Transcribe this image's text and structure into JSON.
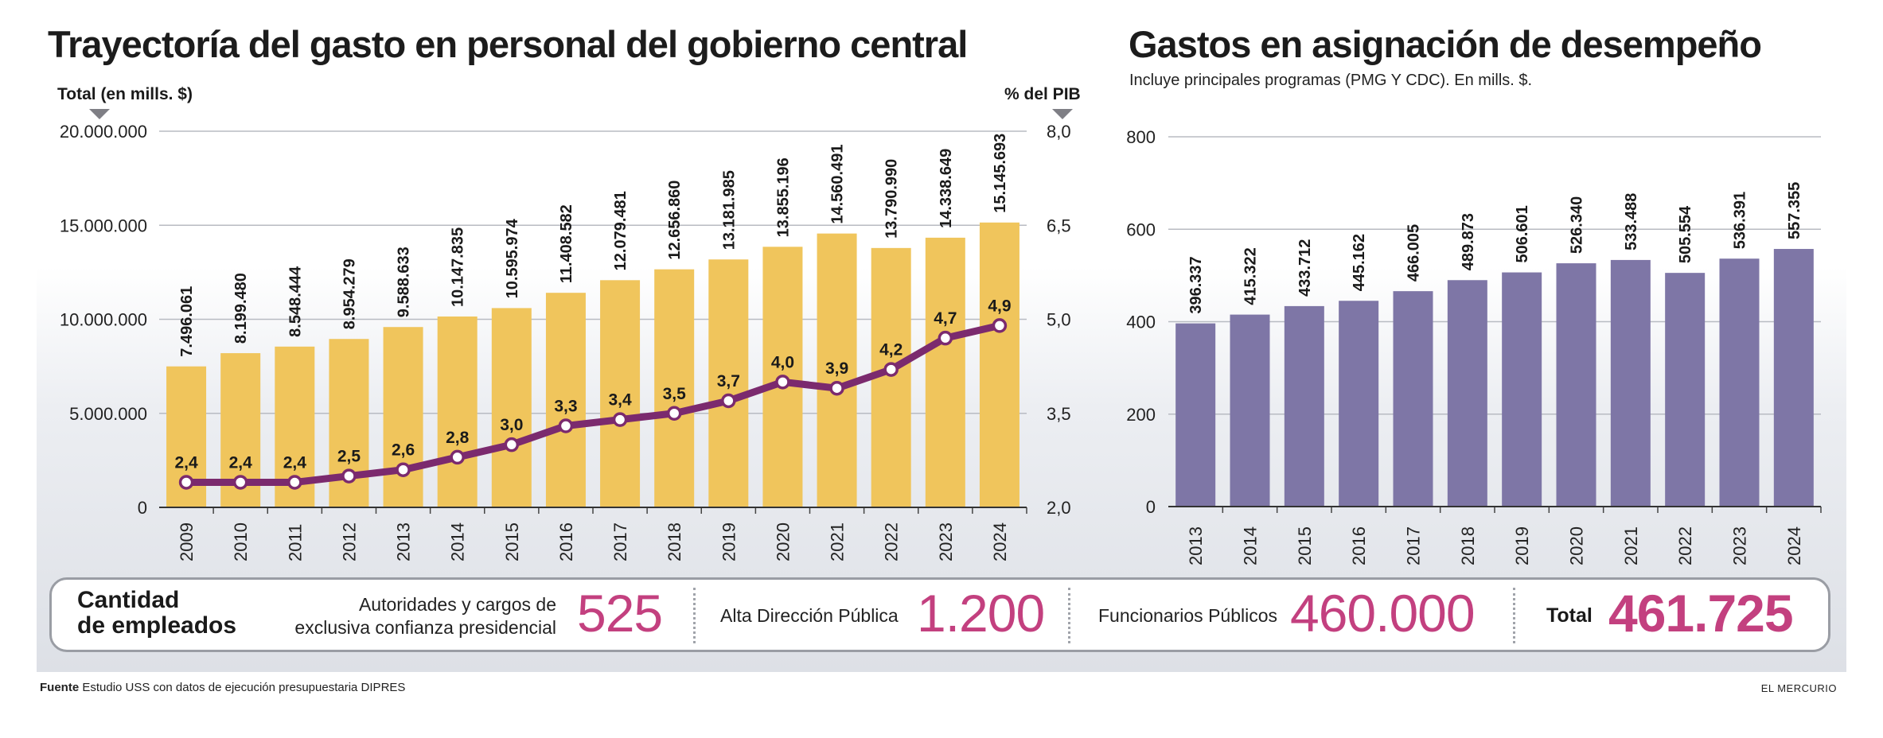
{
  "left": {
    "title": "Trayectoría del gasto en personal del gobierno central",
    "left_axis_title": "Total (en mills. $)",
    "right_axis_title": "% del PIB"
  },
  "right": {
    "title": "Gastos en asignación de desempeño",
    "subtitle": "Incluye principales programas (PMG Y CDC). En mills. $."
  },
  "employees": {
    "title_line1": "Cantidad",
    "title_line2": "de empleados",
    "group1_label_line1": "Autoridades y cargos de",
    "group1_label_line2": "exclusiva confianza presidencial",
    "group1_value": "525",
    "group2_label": "Alta Dirección Pública",
    "group2_value": "1.200",
    "group3_label": "Funcionarios Públicos",
    "group3_value": "460.000",
    "total_label": "Total",
    "total_value": "461.725"
  },
  "footer": {
    "source_label": "Fuente",
    "source_text": "Estudio USS con datos de ejecución presupuestaria DIPRES",
    "credit": "EL MERCURIO"
  },
  "colors": {
    "bar_yellow": "#f0c55c",
    "line_purple": "#7b2a6e",
    "bar_purple": "#7e76a6",
    "accent_pink": "#c3407f"
  },
  "chart_data": [
    {
      "type": "bar",
      "title": "Trayectoría del gasto en personal del gobierno central",
      "ylabel": "Total (en mills. $)",
      "y2label": "% del PIB",
      "categories": [
        "2009",
        "2010",
        "2011",
        "2012",
        "2013",
        "2014",
        "2015",
        "2016",
        "2017",
        "2018",
        "2019",
        "2020",
        "2021",
        "2022",
        "2023",
        "2024"
      ],
      "ylim": [
        0,
        20000000
      ],
      "y_ticks": [
        "0",
        "5.000.000",
        "10.000.000",
        "15.000.000",
        "20.000.000"
      ],
      "y2lim": [
        2.0,
        8.0
      ],
      "y2_ticks": [
        "2,0",
        "3,5",
        "5,0",
        "6,5",
        "8,0"
      ],
      "series": [
        {
          "type": "bar",
          "values": [
            7496061,
            8199480,
            8548444,
            8954279,
            9588633,
            10147835,
            10595974,
            11408582,
            12079481,
            12656860,
            13181985,
            13855196,
            14560491,
            13790990,
            14338649,
            15145693
          ],
          "labels": [
            "7.496.061",
            "8.199.480",
            "8.548.444",
            "8.954.279",
            "9.588.633",
            "10.147.835",
            "10.595.974",
            "11.408.582",
            "12.079.481",
            "12.656.860",
            "13.181.985",
            "13.855.196",
            "14.560.491",
            "13.790.990",
            "14.338.649",
            "15.145.693"
          ]
        },
        {
          "type": "line",
          "axis": "right",
          "values": [
            2.4,
            2.4,
            2.4,
            2.5,
            2.6,
            2.8,
            3.0,
            3.3,
            3.4,
            3.5,
            3.7,
            4.0,
            3.9,
            4.2,
            4.7,
            4.9
          ],
          "labels": [
            "2,4",
            "2,4",
            "2,4",
            "2,5",
            "2,6",
            "2,8",
            "3,0",
            "3,3",
            "3,4",
            "3,5",
            "3,7",
            "4,0",
            "3,9",
            "4,2",
            "4,7",
            "4,9"
          ]
        }
      ],
      "grid": true
    },
    {
      "type": "bar",
      "title": "Gastos en asignación de desempeño",
      "subtitle": "Incluye principales programas (PMG Y CDC). En mills. $.",
      "categories": [
        "2013",
        "2014",
        "2015",
        "2016",
        "2017",
        "2018",
        "2019",
        "2020",
        "2021",
        "2022",
        "2023",
        "2024"
      ],
      "ylim": [
        0,
        800
      ],
      "y_ticks": [
        "0",
        "200",
        "400",
        "600",
        "800"
      ],
      "values": [
        396.337,
        415.322,
        433.712,
        445.162,
        466.005,
        489.873,
        506.601,
        526.34,
        533.488,
        505.554,
        536.391,
        557.355
      ],
      "labels": [
        "396.337",
        "415.322",
        "433.712",
        "445.162",
        "466.005",
        "489.873",
        "506.601",
        "526.340",
        "533.488",
        "505.554",
        "536.391",
        "557.355"
      ],
      "grid": true
    }
  ]
}
